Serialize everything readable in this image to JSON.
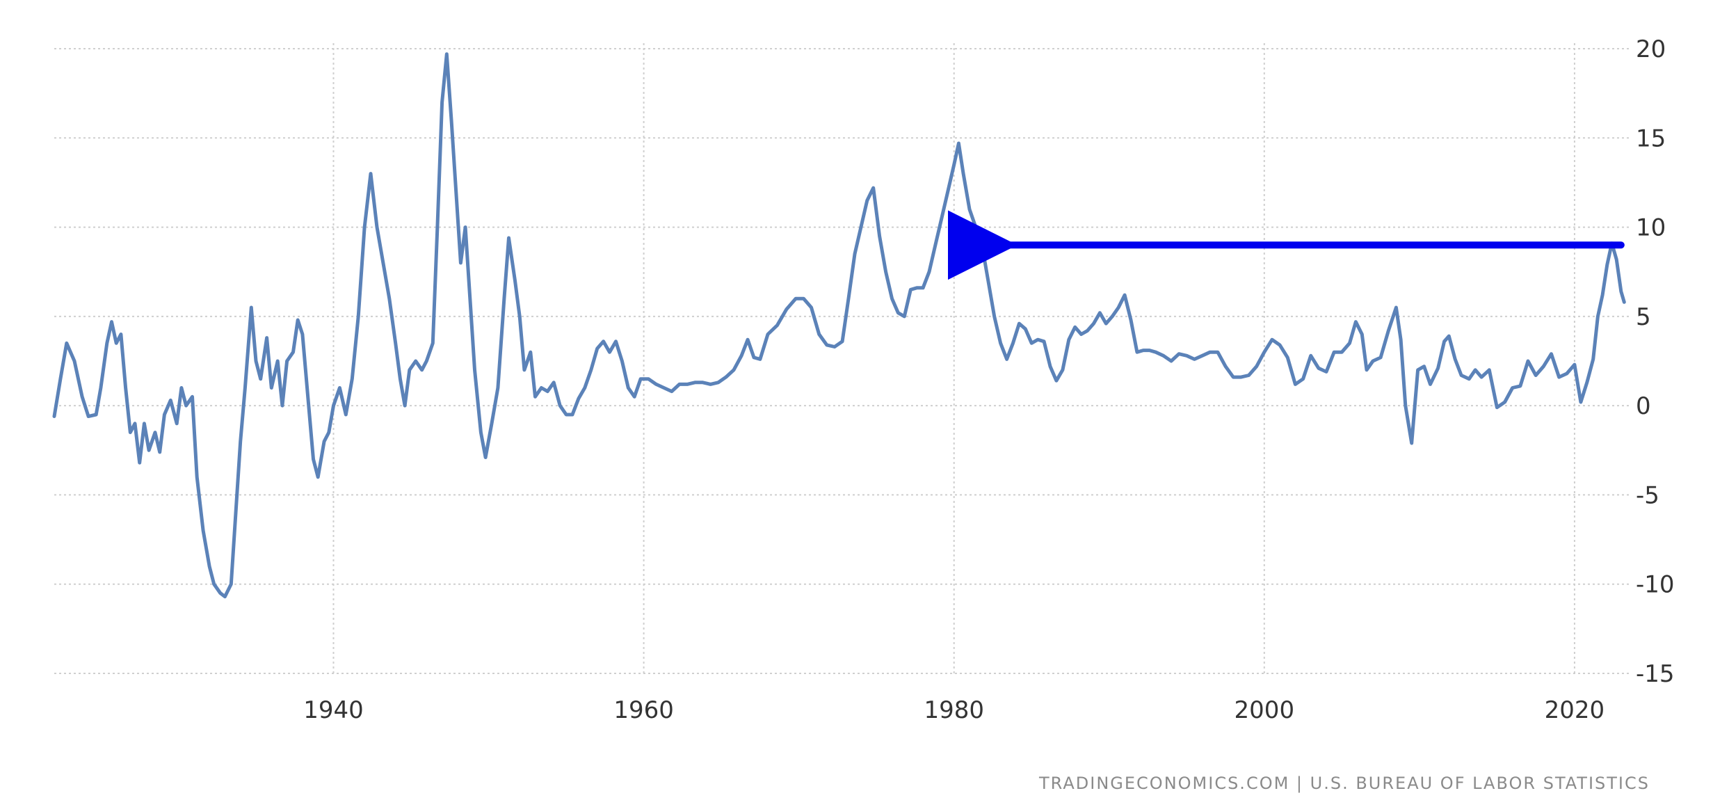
{
  "chart_data": {
    "type": "line",
    "title": "",
    "xlabel": "",
    "ylabel": "",
    "xlim": [
      1922,
      2023.5
    ],
    "ylim": [
      -15,
      20
    ],
    "grid": true,
    "x_ticks": [
      1940,
      1960,
      1980,
      2000,
      2020
    ],
    "y_ticks": [
      20,
      15,
      10,
      5,
      0,
      -5,
      -10,
      -15
    ],
    "x_tick_labels": [
      "1940",
      "1960",
      "1980",
      "2000",
      "2020"
    ],
    "y_tick_labels": [
      "20",
      "15",
      "10",
      "5",
      "0",
      "-5",
      "-10",
      "-15"
    ],
    "series": [
      {
        "color": "#5b82b8",
        "points": [
          [
            1922.0,
            -0.6
          ],
          [
            1922.4,
            1.5
          ],
          [
            1922.8,
            3.5
          ],
          [
            1923.3,
            2.5
          ],
          [
            1923.8,
            0.5
          ],
          [
            1924.2,
            -0.6
          ],
          [
            1924.7,
            -0.5
          ],
          [
            1925.0,
            1.0
          ],
          [
            1925.4,
            3.5
          ],
          [
            1925.7,
            4.7
          ],
          [
            1926.0,
            3.5
          ],
          [
            1926.3,
            4.0
          ],
          [
            1926.6,
            1.0
          ],
          [
            1926.9,
            -1.5
          ],
          [
            1927.2,
            -1.0
          ],
          [
            1927.5,
            -3.2
          ],
          [
            1927.8,
            -1.0
          ],
          [
            1928.1,
            -2.5
          ],
          [
            1928.5,
            -1.5
          ],
          [
            1928.8,
            -2.6
          ],
          [
            1929.1,
            -0.5
          ],
          [
            1929.5,
            0.3
          ],
          [
            1929.9,
            -1.0
          ],
          [
            1930.2,
            1.0
          ],
          [
            1930.5,
            0.0
          ],
          [
            1930.9,
            0.5
          ],
          [
            1931.2,
            -4.0
          ],
          [
            1931.6,
            -7.0
          ],
          [
            1932.0,
            -9.0
          ],
          [
            1932.3,
            -10.0
          ],
          [
            1932.7,
            -10.5
          ],
          [
            1933.0,
            -10.7
          ],
          [
            1933.4,
            -10.0
          ],
          [
            1933.7,
            -6.0
          ],
          [
            1934.0,
            -2.0
          ],
          [
            1934.3,
            1.0
          ],
          [
            1934.7,
            5.5
          ],
          [
            1935.0,
            2.5
          ],
          [
            1935.3,
            1.5
          ],
          [
            1935.7,
            3.8
          ],
          [
            1936.0,
            1.0
          ],
          [
            1936.4,
            2.5
          ],
          [
            1936.7,
            0.0
          ],
          [
            1937.0,
            2.5
          ],
          [
            1937.4,
            3.0
          ],
          [
            1937.7,
            4.8
          ],
          [
            1938.0,
            4.0
          ],
          [
            1938.4,
            0.0
          ],
          [
            1938.7,
            -3.0
          ],
          [
            1939.0,
            -4.0
          ],
          [
            1939.4,
            -2.0
          ],
          [
            1939.7,
            -1.5
          ],
          [
            1940.0,
            0.0
          ],
          [
            1940.4,
            1.0
          ],
          [
            1940.8,
            -0.5
          ],
          [
            1941.2,
            1.5
          ],
          [
            1941.6,
            5.0
          ],
          [
            1942.0,
            10.0
          ],
          [
            1942.4,
            13.0
          ],
          [
            1942.8,
            10.0
          ],
          [
            1943.2,
            8.0
          ],
          [
            1943.6,
            6.0
          ],
          [
            1944.0,
            3.5
          ],
          [
            1944.3,
            1.5
          ],
          [
            1944.6,
            0.0
          ],
          [
            1944.9,
            2.0
          ],
          [
            1945.3,
            2.5
          ],
          [
            1945.7,
            2.0
          ],
          [
            1946.0,
            2.5
          ],
          [
            1946.4,
            3.5
          ],
          [
            1946.7,
            10.0
          ],
          [
            1947.0,
            17.0
          ],
          [
            1947.3,
            19.7
          ],
          [
            1947.6,
            16.0
          ],
          [
            1947.9,
            12.0
          ],
          [
            1948.2,
            8.0
          ],
          [
            1948.5,
            10.0
          ],
          [
            1948.8,
            6.0
          ],
          [
            1949.1,
            2.0
          ],
          [
            1949.5,
            -1.5
          ],
          [
            1949.8,
            -2.9
          ],
          [
            1950.2,
            -1.0
          ],
          [
            1950.6,
            1.0
          ],
          [
            1951.0,
            6.0
          ],
          [
            1951.3,
            9.4
          ],
          [
            1951.7,
            7.0
          ],
          [
            1952.0,
            5.0
          ],
          [
            1952.3,
            2.0
          ],
          [
            1952.7,
            3.0
          ],
          [
            1953.0,
            0.5
          ],
          [
            1953.4,
            1.0
          ],
          [
            1953.8,
            0.8
          ],
          [
            1954.2,
            1.3
          ],
          [
            1954.6,
            0.0
          ],
          [
            1955.0,
            -0.5
          ],
          [
            1955.4,
            -0.5
          ],
          [
            1955.8,
            0.4
          ],
          [
            1956.2,
            1.0
          ],
          [
            1956.6,
            2.0
          ],
          [
            1957.0,
            3.2
          ],
          [
            1957.4,
            3.6
          ],
          [
            1957.8,
            3.0
          ],
          [
            1958.2,
            3.6
          ],
          [
            1958.6,
            2.5
          ],
          [
            1959.0,
            1.0
          ],
          [
            1959.4,
            0.5
          ],
          [
            1959.8,
            1.5
          ],
          [
            1960.3,
            1.5
          ],
          [
            1960.8,
            1.2
          ],
          [
            1961.3,
            1.0
          ],
          [
            1961.8,
            0.8
          ],
          [
            1962.3,
            1.2
          ],
          [
            1962.8,
            1.2
          ],
          [
            1963.3,
            1.3
          ],
          [
            1963.8,
            1.3
          ],
          [
            1964.3,
            1.2
          ],
          [
            1964.8,
            1.3
          ],
          [
            1965.3,
            1.6
          ],
          [
            1965.8,
            2.0
          ],
          [
            1966.3,
            2.8
          ],
          [
            1966.7,
            3.7
          ],
          [
            1967.1,
            2.7
          ],
          [
            1967.5,
            2.6
          ],
          [
            1968.0,
            4.0
          ],
          [
            1968.6,
            4.5
          ],
          [
            1969.2,
            5.4
          ],
          [
            1969.8,
            6.0
          ],
          [
            1970.3,
            6.0
          ],
          [
            1970.8,
            5.5
          ],
          [
            1971.3,
            4.0
          ],
          [
            1971.8,
            3.4
          ],
          [
            1972.3,
            3.3
          ],
          [
            1972.8,
            3.6
          ],
          [
            1973.2,
            6.0
          ],
          [
            1973.6,
            8.5
          ],
          [
            1974.0,
            10.0
          ],
          [
            1974.4,
            11.5
          ],
          [
            1974.8,
            12.2
          ],
          [
            1975.2,
            9.5
          ],
          [
            1975.6,
            7.5
          ],
          [
            1976.0,
            6.0
          ],
          [
            1976.4,
            5.2
          ],
          [
            1976.8,
            5.0
          ],
          [
            1977.2,
            6.5
          ],
          [
            1977.6,
            6.6
          ],
          [
            1978.0,
            6.6
          ],
          [
            1978.4,
            7.5
          ],
          [
            1978.8,
            9.0
          ],
          [
            1979.2,
            10.5
          ],
          [
            1979.6,
            12.0
          ],
          [
            1980.0,
            13.5
          ],
          [
            1980.3,
            14.7
          ],
          [
            1980.6,
            13.0
          ],
          [
            1981.0,
            11.0
          ],
          [
            1981.4,
            10.0
          ],
          [
            1981.8,
            9.0
          ],
          [
            1982.2,
            7.0
          ],
          [
            1982.6,
            5.0
          ],
          [
            1983.0,
            3.5
          ],
          [
            1983.4,
            2.6
          ],
          [
            1983.8,
            3.5
          ],
          [
            1984.2,
            4.6
          ],
          [
            1984.6,
            4.3
          ],
          [
            1985.0,
            3.5
          ],
          [
            1985.4,
            3.7
          ],
          [
            1985.8,
            3.6
          ],
          [
            1986.2,
            2.2
          ],
          [
            1986.6,
            1.4
          ],
          [
            1987.0,
            2.0
          ],
          [
            1987.4,
            3.7
          ],
          [
            1987.8,
            4.4
          ],
          [
            1988.2,
            4.0
          ],
          [
            1988.6,
            4.2
          ],
          [
            1989.0,
            4.6
          ],
          [
            1989.4,
            5.2
          ],
          [
            1989.8,
            4.6
          ],
          [
            1990.2,
            5.0
          ],
          [
            1990.6,
            5.5
          ],
          [
            1991.0,
            6.2
          ],
          [
            1991.4,
            4.8
          ],
          [
            1991.8,
            3.0
          ],
          [
            1992.2,
            3.1
          ],
          [
            1992.6,
            3.1
          ],
          [
            1993.0,
            3.0
          ],
          [
            1993.5,
            2.8
          ],
          [
            1994.0,
            2.5
          ],
          [
            1994.5,
            2.9
          ],
          [
            1995.0,
            2.8
          ],
          [
            1995.5,
            2.6
          ],
          [
            1996.0,
            2.8
          ],
          [
            1996.5,
            3.0
          ],
          [
            1997.0,
            3.0
          ],
          [
            1997.5,
            2.2
          ],
          [
            1998.0,
            1.6
          ],
          [
            1998.5,
            1.6
          ],
          [
            1999.0,
            1.7
          ],
          [
            1999.5,
            2.2
          ],
          [
            2000.0,
            3.0
          ],
          [
            2000.5,
            3.7
          ],
          [
            2001.0,
            3.4
          ],
          [
            2001.5,
            2.7
          ],
          [
            2002.0,
            1.2
          ],
          [
            2002.5,
            1.5
          ],
          [
            2003.0,
            2.8
          ],
          [
            2003.5,
            2.1
          ],
          [
            2004.0,
            1.9
          ],
          [
            2004.5,
            3.0
          ],
          [
            2005.0,
            3.0
          ],
          [
            2005.5,
            3.5
          ],
          [
            2005.9,
            4.7
          ],
          [
            2006.3,
            4.0
          ],
          [
            2006.6,
            2.0
          ],
          [
            2007.0,
            2.5
          ],
          [
            2007.5,
            2.7
          ],
          [
            2008.0,
            4.2
          ],
          [
            2008.5,
            5.5
          ],
          [
            2008.8,
            3.7
          ],
          [
            2009.1,
            0.0
          ],
          [
            2009.5,
            -2.1
          ],
          [
            2009.9,
            2.0
          ],
          [
            2010.3,
            2.2
          ],
          [
            2010.7,
            1.2
          ],
          [
            2011.2,
            2.1
          ],
          [
            2011.6,
            3.6
          ],
          [
            2011.9,
            3.9
          ],
          [
            2012.3,
            2.6
          ],
          [
            2012.7,
            1.7
          ],
          [
            2013.2,
            1.5
          ],
          [
            2013.6,
            2.0
          ],
          [
            2014.0,
            1.6
          ],
          [
            2014.5,
            2.0
          ],
          [
            2015.0,
            -0.1
          ],
          [
            2015.5,
            0.2
          ],
          [
            2016.0,
            1.0
          ],
          [
            2016.5,
            1.1
          ],
          [
            2017.0,
            2.5
          ],
          [
            2017.5,
            1.7
          ],
          [
            2018.0,
            2.2
          ],
          [
            2018.5,
            2.9
          ],
          [
            2019.0,
            1.6
          ],
          [
            2019.5,
            1.8
          ],
          [
            2020.0,
            2.3
          ],
          [
            2020.4,
            0.2
          ],
          [
            2020.8,
            1.3
          ],
          [
            2021.2,
            2.6
          ],
          [
            2021.5,
            5.0
          ],
          [
            2021.8,
            6.2
          ],
          [
            2022.1,
            7.9
          ],
          [
            2022.4,
            9.1
          ],
          [
            2022.7,
            8.2
          ],
          [
            2023.0,
            6.4
          ],
          [
            2023.2,
            5.8
          ]
        ]
      }
    ],
    "annotations": [
      {
        "type": "arrow",
        "color": "#0000ee",
        "from": [
          2023.0,
          9.0
        ],
        "to": [
          1982.2,
          9.0
        ]
      }
    ]
  },
  "source_label": "TRADINGECONOMICS.COM  |  U.S. BUREAU OF LABOR STATISTICS"
}
